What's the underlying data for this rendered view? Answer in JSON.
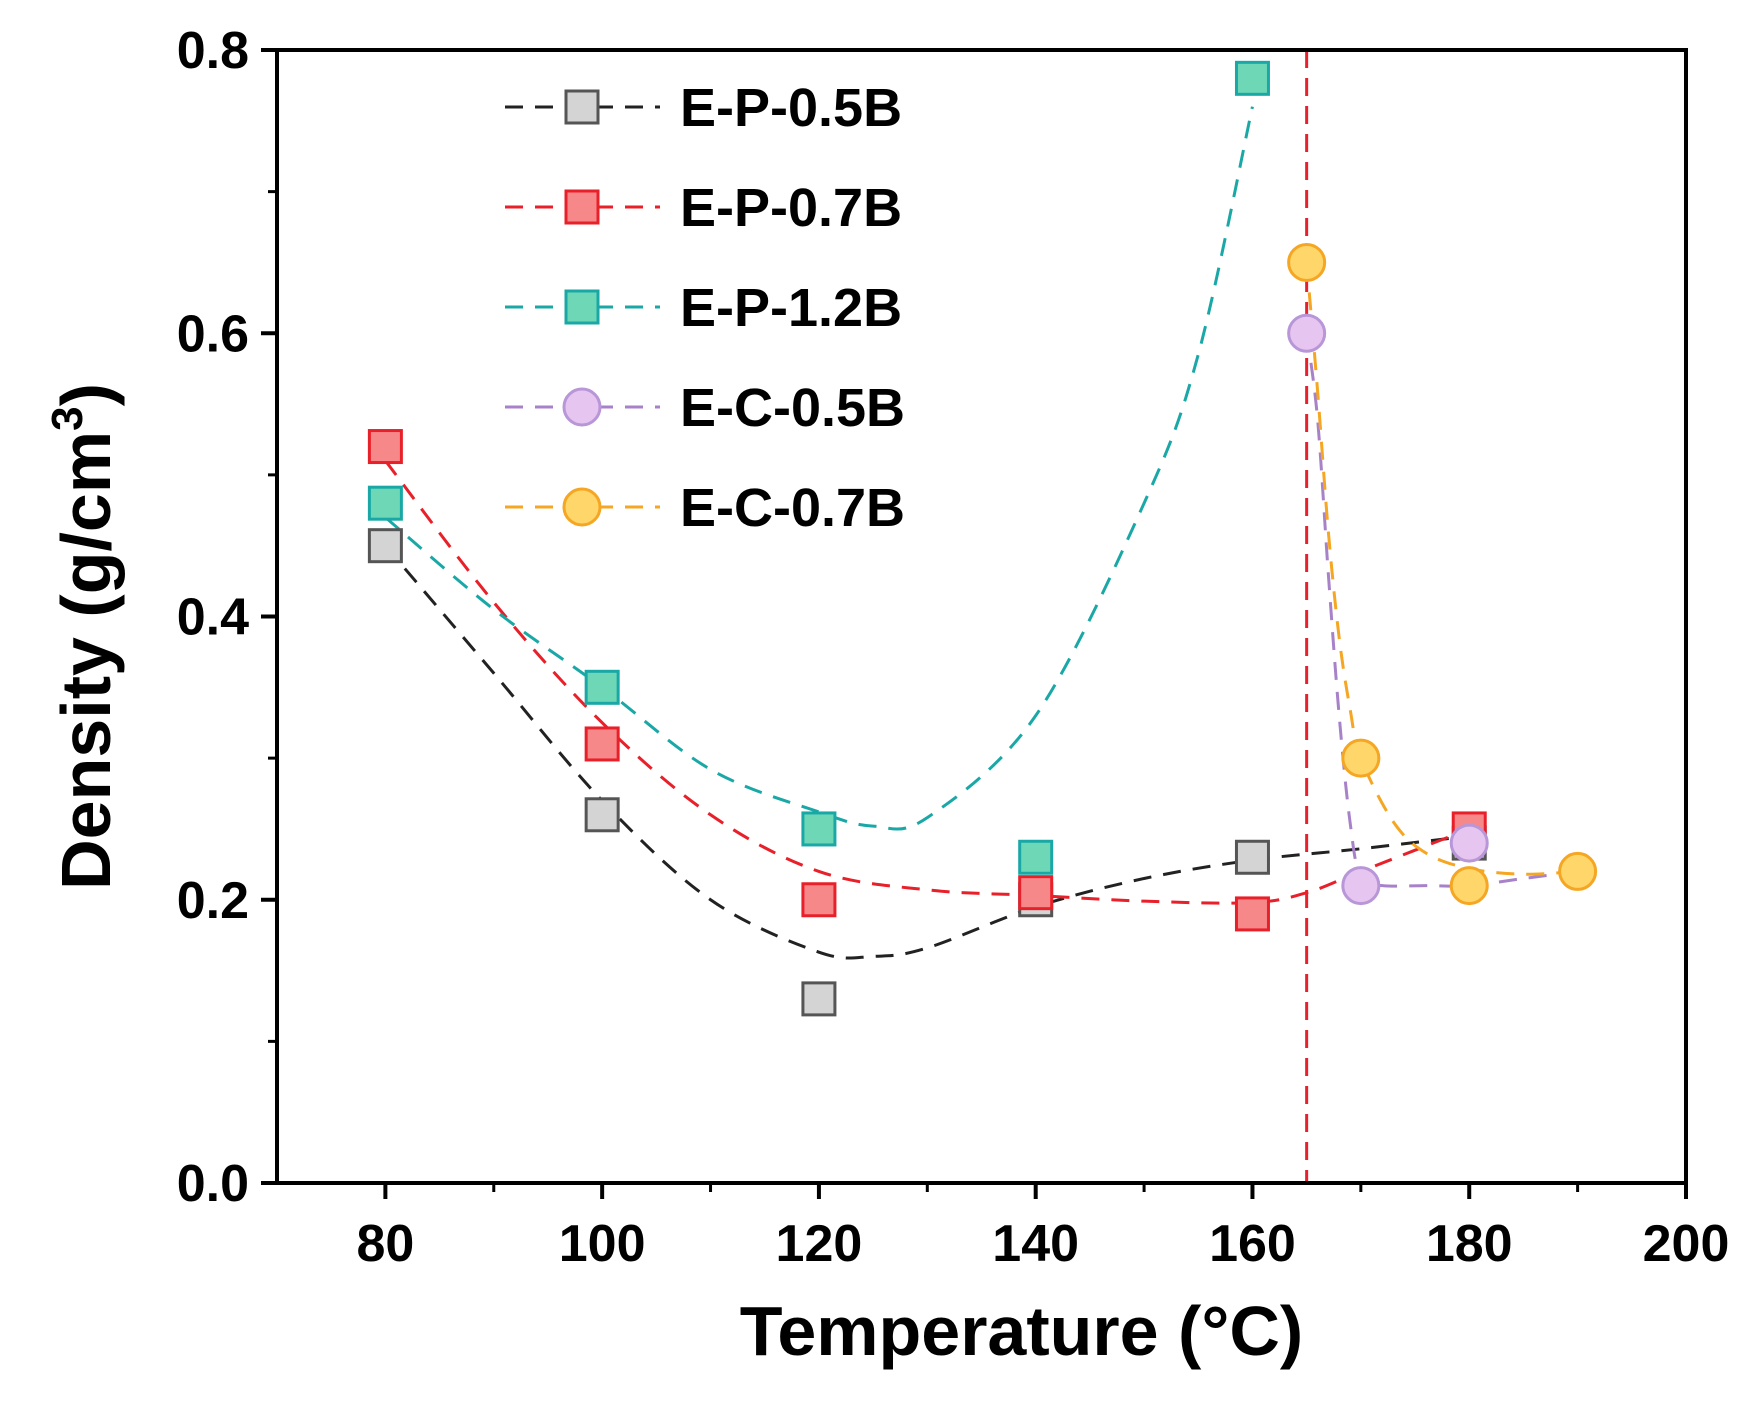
{
  "chart_data": {
    "type": "scatter",
    "title": "",
    "xlabel": "Temperature (°C)",
    "ylabel_main": "Density (g/cm",
    "ylabel_sup": "3",
    "ylabel_close": ")",
    "xlim": [
      70,
      200
    ],
    "ylim": [
      0,
      0.8
    ],
    "xticks": [
      80,
      100,
      120,
      140,
      160,
      180,
      200
    ],
    "xticks_minor": [
      90,
      110,
      130,
      150,
      170,
      190
    ],
    "yticks": [
      0.0,
      0.2,
      0.4,
      0.6,
      0.8
    ],
    "yticks_minor": [
      0.1,
      0.3,
      0.5,
      0.7
    ],
    "ytick_labels": [
      "0.0",
      "0.2",
      "0.4",
      "0.6",
      "0.8"
    ],
    "xtick_labels": [
      "80",
      "100",
      "120",
      "140",
      "160",
      "180",
      "200"
    ],
    "grid": false,
    "legend_position": "top-left",
    "reference_line": {
      "x": 165,
      "color": "#e8202a",
      "style": "dashed"
    },
    "series": [
      {
        "name": "E-P-0.5B",
        "marker": "square",
        "fill": "#d4d4d4",
        "stroke": "#555555",
        "line_color": "#222222",
        "x": [
          80,
          100,
          120,
          140,
          160,
          180
        ],
        "y": [
          0.45,
          0.26,
          0.13,
          0.2,
          0.23,
          0.24
        ],
        "fit": [
          [
            80,
            0.45
          ],
          [
            90,
            0.36
          ],
          [
            100,
            0.27
          ],
          [
            110,
            0.2
          ],
          [
            120,
            0.163
          ],
          [
            125,
            0.16
          ],
          [
            130,
            0.166
          ],
          [
            140,
            0.195
          ],
          [
            150,
            0.215
          ],
          [
            160,
            0.228
          ],
          [
            170,
            0.236
          ],
          [
            180,
            0.245
          ]
        ]
      },
      {
        "name": "E-P-0.7B",
        "marker": "square",
        "fill": "#f7888a",
        "stroke": "#e8202a",
        "line_color": "#e8202a",
        "x": [
          80,
          100,
          120,
          140,
          160,
          180
        ],
        "y": [
          0.52,
          0.31,
          0.2,
          0.205,
          0.19,
          0.25
        ],
        "fit": [
          [
            80,
            0.51
          ],
          [
            90,
            0.41
          ],
          [
            100,
            0.325
          ],
          [
            110,
            0.26
          ],
          [
            120,
            0.22
          ],
          [
            130,
            0.207
          ],
          [
            140,
            0.203
          ],
          [
            150,
            0.199
          ],
          [
            160,
            0.198
          ],
          [
            165,
            0.205
          ],
          [
            170,
            0.22
          ],
          [
            180,
            0.25
          ]
        ]
      },
      {
        "name": "E-P-1.2B",
        "marker": "square",
        "fill": "#6ed7b6",
        "stroke": "#1aa8a6",
        "line_color": "#1aa8a6",
        "x": [
          80,
          100,
          120,
          140,
          160
        ],
        "y": [
          0.48,
          0.35,
          0.25,
          0.23,
          0.78
        ],
        "fit": [
          [
            80,
            0.47
          ],
          [
            90,
            0.405
          ],
          [
            100,
            0.35
          ],
          [
            110,
            0.292
          ],
          [
            120,
            0.262
          ],
          [
            125,
            0.252
          ],
          [
            130,
            0.258
          ],
          [
            140,
            0.33
          ],
          [
            150,
            0.48
          ],
          [
            155,
            0.585
          ],
          [
            160,
            0.76
          ]
        ]
      },
      {
        "name": "E-C-0.5B",
        "marker": "circle",
        "fill": "#e6c6f0",
        "stroke": "#b896d8",
        "line_color": "#a882c8",
        "x": [
          165,
          170,
          180
        ],
        "y": [
          0.6,
          0.21,
          0.24
        ],
        "fit": [
          [
            165,
            0.6
          ],
          [
            166,
            0.54
          ],
          [
            167,
            0.43
          ],
          [
            168,
            0.33
          ],
          [
            169,
            0.255
          ],
          [
            170,
            0.215
          ],
          [
            172,
            0.21
          ],
          [
            176,
            0.21
          ],
          [
            180,
            0.21
          ],
          [
            185,
            0.215
          ],
          [
            190,
            0.22
          ]
        ]
      },
      {
        "name": "E-C-0.7B",
        "marker": "circle",
        "fill": "#ffd66a",
        "stroke": "#f5a623",
        "line_color": "#f5a623",
        "x": [
          165,
          170,
          180,
          190
        ],
        "y": [
          0.65,
          0.3,
          0.21,
          0.22
        ],
        "fit": [
          [
            165,
            0.65
          ],
          [
            166,
            0.56
          ],
          [
            167,
            0.46
          ],
          [
            168,
            0.385
          ],
          [
            169,
            0.335
          ],
          [
            170,
            0.3
          ],
          [
            173,
            0.255
          ],
          [
            176,
            0.233
          ],
          [
            180,
            0.222
          ],
          [
            185,
            0.218
          ],
          [
            190,
            0.22
          ]
        ]
      }
    ]
  }
}
